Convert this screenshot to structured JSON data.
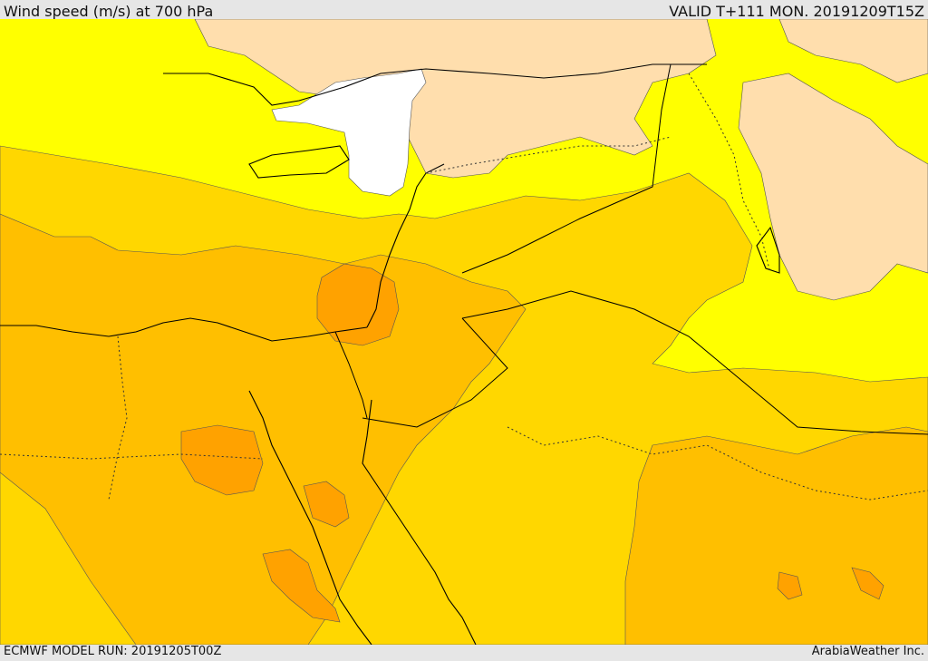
{
  "header": {
    "title": "Wind speed (m/s) at 700 hPa",
    "valid_time": "VALID T+111 MON. 20191209T15Z"
  },
  "footer": {
    "model_run": "ECMWF MODEL RUN: 20191205T00Z",
    "credit": "ArabiaWeather Inc."
  },
  "colors": {
    "band_very_low": "#ffffff",
    "band_low": "#ffdead",
    "band_mid": "#ffff00",
    "band_high": "#ffd700",
    "band_higher": "#ffbf00",
    "band_highest": "#ffa200",
    "coastline": "#000000",
    "border": "#333333"
  }
}
